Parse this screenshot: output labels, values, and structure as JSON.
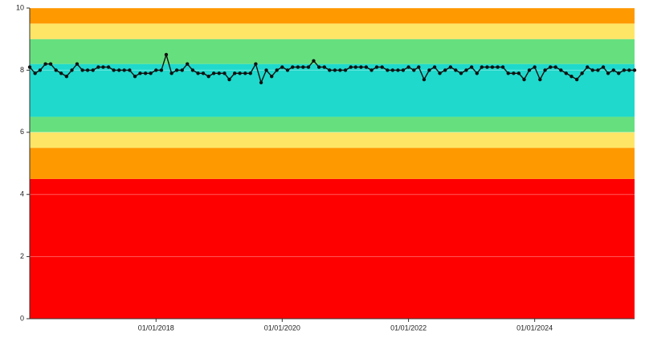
{
  "chart_data": {
    "type": "line",
    "x": [
      "2016-01-01",
      "2016-02-01",
      "2016-03-01",
      "2016-04-01",
      "2016-05-01",
      "2016-06-01",
      "2016-07-01",
      "2016-08-01",
      "2016-09-01",
      "2016-10-01",
      "2016-11-01",
      "2016-12-01",
      "2017-01-01",
      "2017-02-01",
      "2017-03-01",
      "2017-04-01",
      "2017-05-01",
      "2017-06-01",
      "2017-07-01",
      "2017-08-01",
      "2017-09-01",
      "2017-10-01",
      "2017-11-01",
      "2017-12-01",
      "2018-01-01",
      "2018-02-01",
      "2018-03-01",
      "2018-04-01",
      "2018-05-01",
      "2018-06-01",
      "2018-07-01",
      "2018-08-01",
      "2018-09-01",
      "2018-10-01",
      "2018-11-01",
      "2018-12-01",
      "2019-01-01",
      "2019-02-01",
      "2019-03-01",
      "2019-04-01",
      "2019-05-01",
      "2019-06-01",
      "2019-07-01",
      "2019-08-01",
      "2019-09-01",
      "2019-10-01",
      "2019-11-01",
      "2019-12-01",
      "2020-01-01",
      "2020-02-01",
      "2020-03-01",
      "2020-04-01",
      "2020-05-01",
      "2020-06-01",
      "2020-07-01",
      "2020-08-01",
      "2020-09-01",
      "2020-10-01",
      "2020-11-01",
      "2020-12-01",
      "2021-01-01",
      "2021-02-01",
      "2021-03-01",
      "2021-04-01",
      "2021-05-01",
      "2021-06-01",
      "2021-07-01",
      "2021-08-01",
      "2021-09-01",
      "2021-10-01",
      "2021-11-01",
      "2021-12-01",
      "2022-01-01",
      "2022-02-01",
      "2022-03-01",
      "2022-04-01",
      "2022-05-01",
      "2022-06-01",
      "2022-07-01",
      "2022-08-01",
      "2022-09-01",
      "2022-10-01",
      "2022-11-01",
      "2022-12-01",
      "2023-01-01",
      "2023-02-01",
      "2023-03-01",
      "2023-04-01",
      "2023-05-01",
      "2023-06-01",
      "2023-07-01",
      "2023-08-01",
      "2023-09-01",
      "2023-10-01",
      "2023-11-01",
      "2023-12-01",
      "2024-01-01",
      "2024-02-01",
      "2024-03-01",
      "2024-04-01",
      "2024-05-01",
      "2024-06-01",
      "2024-07-01",
      "2024-08-01",
      "2024-09-01",
      "2024-10-01",
      "2024-11-01",
      "2024-12-01",
      "2025-01-01",
      "2025-02-01",
      "2025-03-01",
      "2025-04-01",
      "2025-05-01",
      "2025-06-01",
      "2025-07-01",
      "2025-08-01"
    ],
    "series": [
      {
        "color": "#111111",
        "values": [
          8.1,
          7.9,
          8.0,
          8.2,
          8.2,
          8.0,
          7.9,
          7.8,
          8.0,
          8.2,
          8.0,
          8.0,
          8.0,
          8.1,
          8.1,
          8.1,
          8.0,
          8.0,
          8.0,
          8.0,
          7.8,
          7.9,
          7.9,
          7.9,
          8.0,
          8.0,
          8.5,
          7.9,
          8.0,
          8.0,
          8.2,
          8.0,
          7.9,
          7.9,
          7.8,
          7.9,
          7.9,
          7.9,
          7.7,
          7.9,
          7.9,
          7.9,
          7.9,
          8.2,
          7.6,
          8.0,
          7.8,
          8.0,
          8.1,
          8.0,
          8.1,
          8.1,
          8.1,
          8.1,
          8.3,
          8.1,
          8.1,
          8.0,
          8.0,
          8.0,
          8.0,
          8.1,
          8.1,
          8.1,
          8.1,
          8.0,
          8.1,
          8.1,
          8.0,
          8.0,
          8.0,
          8.0,
          8.1,
          8.0,
          8.1,
          7.7,
          8.0,
          8.1,
          7.9,
          8.0,
          8.1,
          8.0,
          7.9,
          8.0,
          8.1,
          7.9,
          8.1,
          8.1,
          8.1,
          8.1,
          8.1,
          7.9,
          7.9,
          7.9,
          7.7,
          8.0,
          8.1,
          7.7,
          8.0,
          8.1,
          8.1,
          8.0,
          7.9,
          7.8,
          7.7,
          7.9,
          8.1,
          8.0,
          8.0,
          8.1,
          7.9,
          8.0,
          7.9,
          8.0,
          8.0,
          8.0
        ]
      }
    ],
    "bands": [
      {
        "from": 0,
        "to": 4.5,
        "color": "#ff0000"
      },
      {
        "from": 4.5,
        "to": 5.5,
        "color": "#ff9900"
      },
      {
        "from": 5.5,
        "to": 6,
        "color": "#ffe566"
      },
      {
        "from": 6,
        "to": 6.5,
        "color": "#66e07f"
      },
      {
        "from": 6.5,
        "to": 8.2,
        "color": "#1fd9cc"
      },
      {
        "from": 8.2,
        "to": 9,
        "color": "#66e07f"
      },
      {
        "from": 9,
        "to": 9.5,
        "color": "#ffe566"
      },
      {
        "from": 9.5,
        "to": 10,
        "color": "#ff9900"
      }
    ],
    "xlim": [
      "2016-01-01",
      "2025-08-01"
    ],
    "xticks": [
      {
        "value": "2018-01-01",
        "label": "01/01/2018"
      },
      {
        "value": "2020-01-01",
        "label": "01/01/2020"
      },
      {
        "value": "2022-01-01",
        "label": "01/01/2022"
      },
      {
        "value": "2024-01-01",
        "label": "01/01/2024"
      }
    ],
    "ylim": [
      0,
      10
    ],
    "yticks": [
      0,
      2,
      4,
      6,
      8,
      10
    ],
    "grid": true
  }
}
